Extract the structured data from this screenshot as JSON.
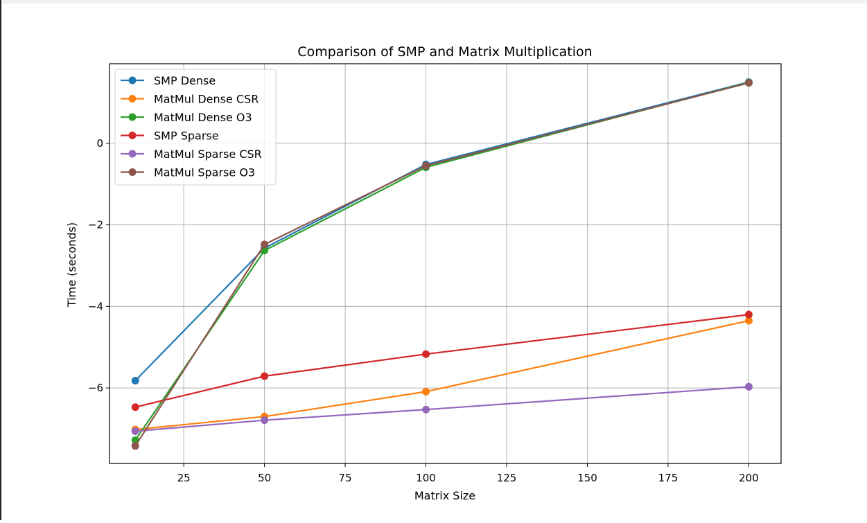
{
  "chart_data": {
    "type": "line",
    "title": "Comparison of SMP and Matrix Multiplication",
    "xlabel": "Matrix Size",
    "ylabel": "Time (seconds)",
    "x": [
      10,
      50,
      100,
      200
    ],
    "xlim": [
      2,
      210
    ],
    "ylim": [
      -7.85,
      1.95
    ],
    "xticks": [
      25,
      50,
      75,
      100,
      125,
      150,
      175,
      200
    ],
    "yticks": [
      0,
      -2,
      -4,
      -6
    ],
    "ytick_labels": [
      "0",
      "−2",
      "−4",
      "−6"
    ],
    "grid": true,
    "legend_position": "upper left",
    "series": [
      {
        "name": "SMP Dense",
        "color": "#1f77b4",
        "values": [
          -5.82,
          -2.57,
          -0.52,
          1.5
        ]
      },
      {
        "name": "MatMul Dense CSR",
        "color": "#ff7f0e",
        "values": [
          -7.02,
          -6.7,
          -6.09,
          -4.35
        ]
      },
      {
        "name": "MatMul Dense O3",
        "color": "#2ca02c",
        "values": [
          -7.28,
          -2.63,
          -0.59,
          1.49
        ]
      },
      {
        "name": "SMP Sparse",
        "color": "#d62728",
        "values": [
          -6.47,
          -5.71,
          -5.17,
          -4.2
        ]
      },
      {
        "name": "MatMul Sparse CSR",
        "color": "#9467bd",
        "values": [
          -7.06,
          -6.79,
          -6.53,
          -5.97
        ]
      },
      {
        "name": "MatMul Sparse O3",
        "color": "#8c564b",
        "values": [
          -7.42,
          -2.48,
          -0.55,
          1.48
        ]
      }
    ]
  }
}
